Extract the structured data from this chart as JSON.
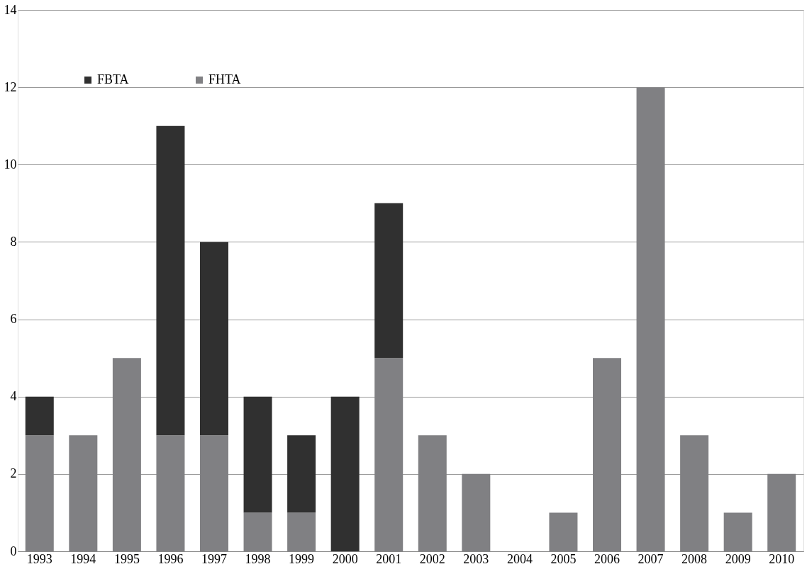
{
  "chart_data": {
    "type": "bar",
    "stacked": true,
    "categories": [
      "1993",
      "1994",
      "1995",
      "1996",
      "1997",
      "1998",
      "1999",
      "2000",
      "2001",
      "2002",
      "2003",
      "2004",
      "2005",
      "2006",
      "2007",
      "2008",
      "2009",
      "2010"
    ],
    "series": [
      {
        "name": "FHTA",
        "color": "#808083",
        "values": [
          3,
          3,
          5,
          3,
          3,
          1,
          1,
          0,
          5,
          3,
          2,
          0,
          1,
          5,
          12,
          3,
          1,
          2
        ]
      },
      {
        "name": "FBTA",
        "color": "#303030",
        "values": [
          1,
          0,
          0,
          8,
          5,
          3,
          2,
          4,
          4,
          0,
          0,
          0,
          0,
          0,
          0,
          0,
          0,
          0
        ]
      }
    ],
    "ylim": [
      0,
      14
    ],
    "yticks": [
      0,
      2,
      4,
      6,
      8,
      10,
      12,
      14
    ],
    "grid": "y",
    "legend": "top left"
  }
}
